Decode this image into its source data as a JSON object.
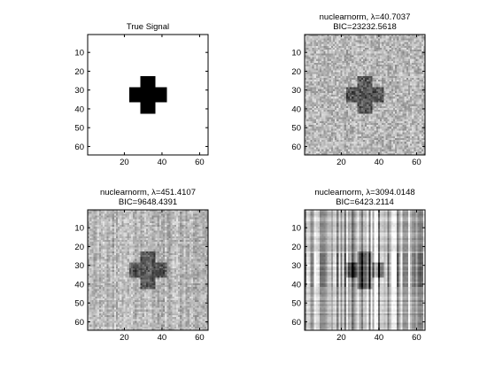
{
  "chart_data": [
    {
      "type": "heatmap",
      "title_lines": [
        "True Signal"
      ],
      "x_ticks": [
        20,
        40,
        60
      ],
      "y_ticks": [
        10,
        20,
        30,
        40,
        50,
        60
      ],
      "xlim": [
        0.5,
        64.5
      ],
      "ylim": [
        0.5,
        64.5
      ],
      "y_direction": "reversed",
      "colormap": "gray",
      "grid": false,
      "matrix_size": [
        64,
        64
      ],
      "pattern": "cross",
      "background_value": 1,
      "cross_value": 0,
      "cross_center": [
        32.5,
        32.5
      ],
      "cross_arm_half_length": 10,
      "cross_arm_half_width": 3.5
    },
    {
      "type": "heatmap",
      "title_lines": [
        "nuclearnorm,  λ=40.7037",
        "BIC=23232.5618"
      ],
      "x_ticks": [
        20,
        40,
        60
      ],
      "y_ticks": [
        10,
        20,
        30,
        40,
        50,
        60
      ],
      "xlim": [
        0.5,
        64.5
      ],
      "ylim": [
        0.5,
        64.5
      ],
      "y_direction": "reversed",
      "colormap": "gray",
      "grid": false,
      "matrix_size": [
        64,
        64
      ],
      "pattern": "noisy-cross",
      "noise_level": "high",
      "rank_structure": "low"
    },
    {
      "type": "heatmap",
      "title_lines": [
        "nuclearnorm,  λ=451.4107",
        "BIC=9648.4391"
      ],
      "x_ticks": [
        20,
        40,
        60
      ],
      "y_ticks": [
        10,
        20,
        30,
        40,
        50,
        60
      ],
      "xlim": [
        0.5,
        64.5
      ],
      "ylim": [
        0.5,
        64.5
      ],
      "y_direction": "reversed",
      "colormap": "gray",
      "grid": false,
      "matrix_size": [
        64,
        64
      ],
      "pattern": "noisy-cross",
      "noise_level": "medium",
      "rank_structure": "medium"
    },
    {
      "type": "heatmap",
      "title_lines": [
        "nuclearnorm,  λ=3094.0148",
        "BIC=6423.2114"
      ],
      "x_ticks": [
        20,
        40,
        60
      ],
      "y_ticks": [
        10,
        20,
        30,
        40,
        50,
        60
      ],
      "xlim": [
        0.5,
        64.5
      ],
      "ylim": [
        0.5,
        64.5
      ],
      "y_direction": "reversed",
      "colormap": "gray",
      "grid": false,
      "matrix_size": [
        64,
        64
      ],
      "pattern": "striped-cross",
      "noise_level": "low",
      "rank_structure": "high"
    }
  ]
}
